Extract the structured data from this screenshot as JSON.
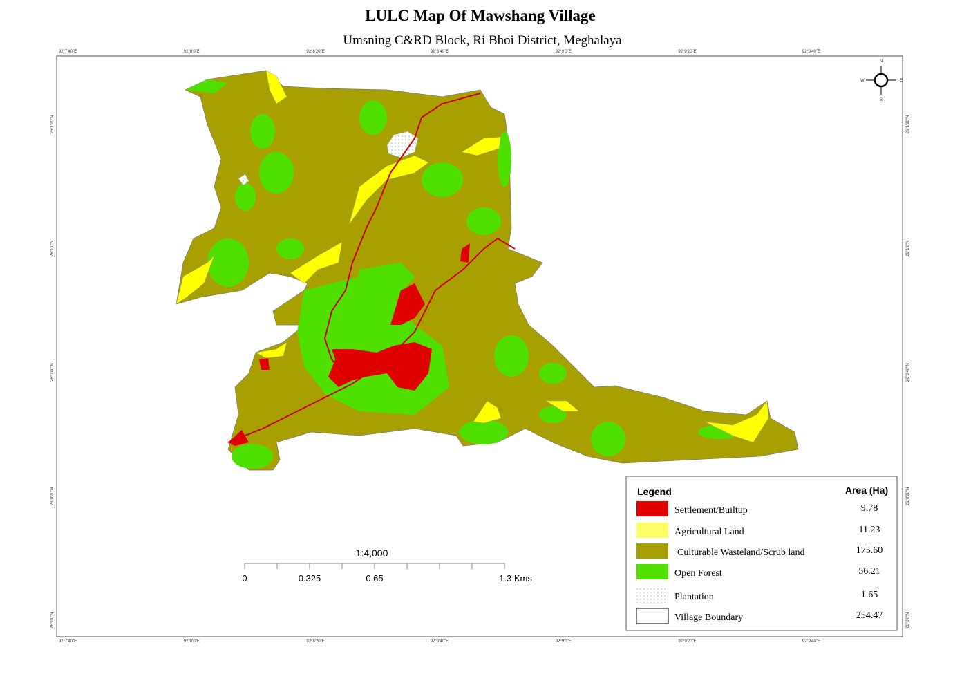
{
  "title": "LULC Map Of Mawshang Village",
  "subtitle": "Umsning C&RD Block, Ri Bhoi District, Meghalaya",
  "longitude_labels": [
    "92°7'40\"E",
    "92°8'0\"E",
    "92°8'20\"E",
    "92°8'40\"E",
    "92°9'0\"E",
    "92°9'20\"E",
    "92°9'40\"E"
  ],
  "latitude_labels": [
    "26°1'20\"N",
    "26°1'0\"N",
    "26°0'40\"N",
    "26°0'20\"N",
    "26°0'0\"N"
  ],
  "compass": {
    "n": "N",
    "s": "S",
    "e": "E",
    "w": "W"
  },
  "scale_bar": {
    "ratio": "1:4,000",
    "labels": [
      "0",
      "0.325",
      "0.65",
      "1.3 Kms"
    ]
  },
  "legend": {
    "title": "Legend",
    "area_header": "Area (Ha)",
    "items": [
      {
        "label": "Settlement/Builtup",
        "area": "9.78"
      },
      {
        "label": "Agricultural Land",
        "area": "11.23"
      },
      {
        "label": "Culturable Wasteland/Scrub land",
        "area": "175.60"
      },
      {
        "label": "Open Forest",
        "area": "56.21"
      },
      {
        "label": "Plantation",
        "area": "1.65"
      },
      {
        "label": "Village Boundary",
        "area": "254.47"
      }
    ]
  }
}
